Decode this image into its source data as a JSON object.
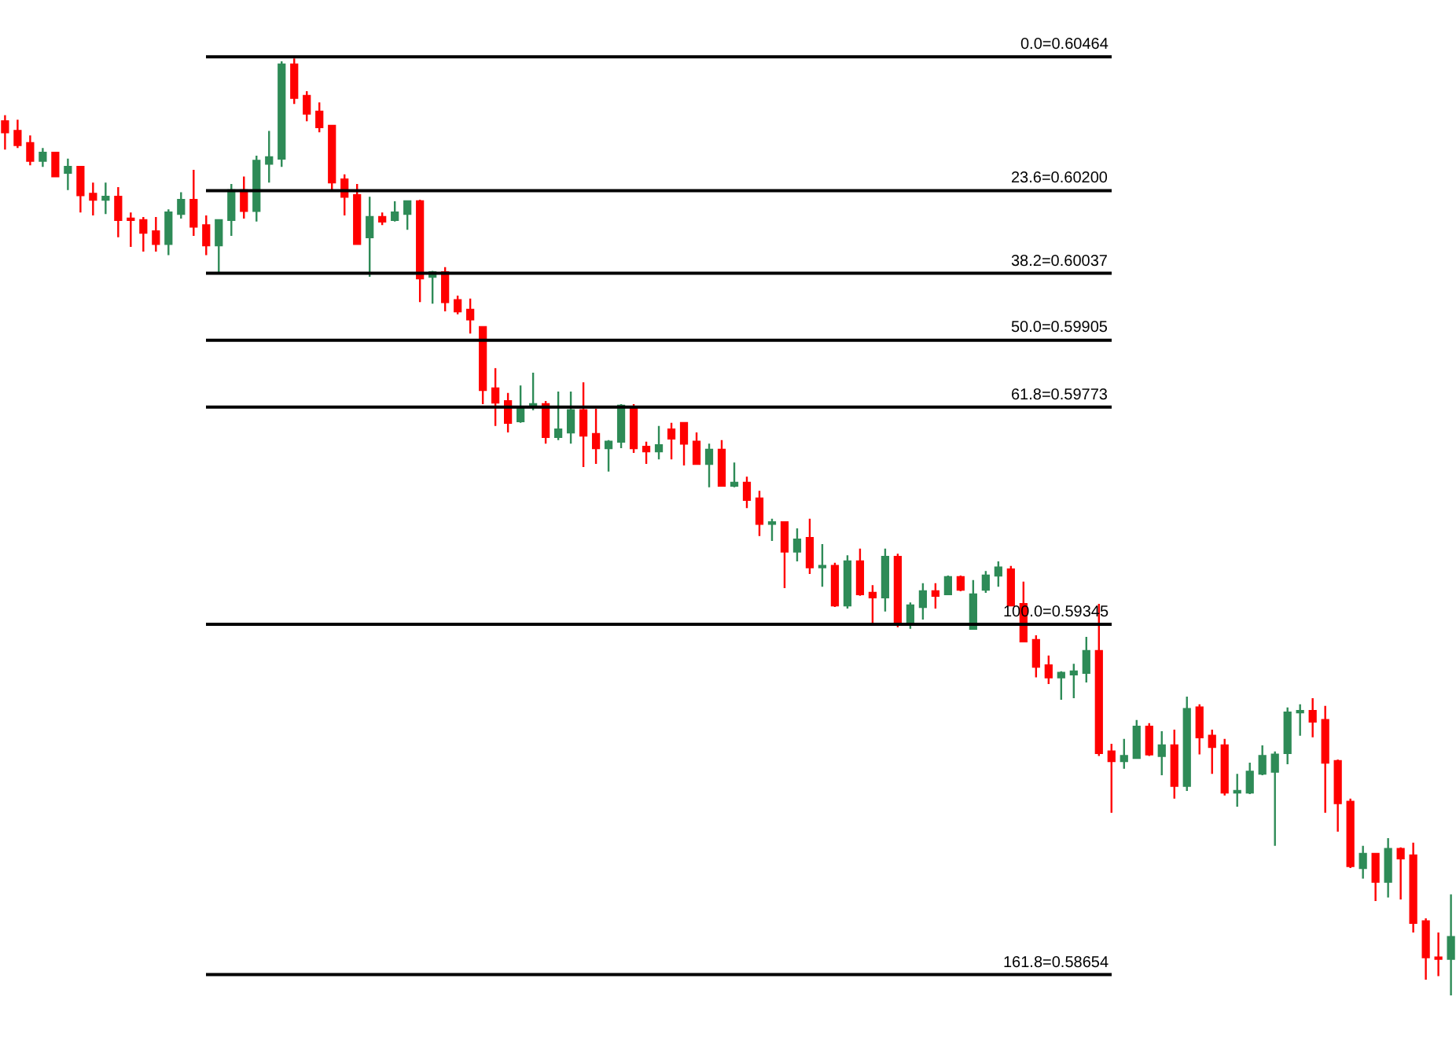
{
  "chart_data": {
    "type": "candlestick",
    "categories": [
      null,
      null,
      null,
      null,
      null,
      null,
      null,
      null,
      null,
      null,
      null,
      null,
      null,
      null,
      null,
      null,
      null,
      null,
      null,
      null,
      null,
      null,
      null,
      null,
      null,
      null,
      null,
      null,
      null,
      null,
      null,
      null,
      null,
      null,
      null,
      null,
      null,
      null,
      null,
      null,
      null,
      null,
      null,
      null,
      null,
      null,
      null,
      null,
      null,
      null,
      null,
      null,
      null,
      null,
      null,
      null,
      null,
      null,
      null,
      null,
      null,
      null,
      null,
      null,
      null,
      null,
      null,
      null,
      null,
      null,
      null,
      null,
      null,
      null,
      null,
      null,
      null,
      null,
      null,
      null,
      null,
      null,
      null,
      null,
      null,
      null,
      null,
      null,
      null,
      null,
      null,
      null,
      null,
      null,
      null,
      null,
      null,
      null,
      null,
      null,
      null,
      null,
      null,
      null,
      null,
      null,
      null,
      null,
      null,
      null,
      null,
      null,
      null,
      null,
      null,
      null
    ],
    "ohlc": [
      [
        0.60337,
        0.60349,
        0.60281,
        0.60315
      ],
      [
        0.60318,
        0.6034,
        0.60284,
        0.6029
      ],
      [
        0.60294,
        0.60309,
        0.6025,
        0.60259
      ],
      [
        0.60259,
        0.60284,
        0.60247,
        0.60275
      ],
      [
        0.60275,
        0.60275,
        0.60228,
        0.60228
      ],
      [
        0.60235,
        0.60263,
        0.60201,
        0.60247
      ],
      [
        0.60247,
        0.60247,
        0.60157,
        0.60191
      ],
      [
        0.60194,
        0.60216,
        0.60151,
        0.60182
      ],
      [
        0.60182,
        0.60216,
        0.60154,
        0.60188
      ],
      [
        0.60188,
        0.60207,
        0.60108,
        0.60142
      ],
      [
        0.60145,
        0.60157,
        0.60089,
        0.60142
      ],
      [
        0.60142,
        0.60148,
        0.6008,
        0.60117
      ],
      [
        0.6012,
        0.60148,
        0.6008,
        0.60095
      ],
      [
        0.60095,
        0.60163,
        0.60073,
        0.60157
      ],
      [
        0.60154,
        0.60197,
        0.60145,
        0.60182
      ],
      [
        0.60182,
        0.60241,
        0.60111,
        0.60129
      ],
      [
        0.60132,
        0.60151,
        0.60073,
        0.60092
      ],
      [
        0.60092,
        0.60142,
        0.60036,
        0.60142
      ],
      [
        0.60142,
        0.60213,
        0.60111,
        0.60201
      ],
      [
        0.60201,
        0.60228,
        0.60145,
        0.6016
      ],
      [
        0.6016,
        0.60269,
        0.60139,
        0.60259
      ],
      [
        0.60253,
        0.60318,
        0.60216,
        0.60266
      ],
      [
        0.60263,
        0.60455,
        0.60247,
        0.60449
      ],
      [
        0.60449,
        0.60461,
        0.60371,
        0.60383
      ],
      [
        0.60387,
        0.60396,
        0.60337,
        0.60352
      ],
      [
        0.60356,
        0.60374,
        0.60315,
        0.60325
      ],
      [
        0.60328,
        0.60328,
        0.60201,
        0.60216
      ],
      [
        0.60222,
        0.60232,
        0.60151,
        0.60188
      ],
      [
        0.60191,
        0.60213,
        0.60095,
        0.60095
      ],
      [
        0.60108,
        0.60188,
        0.6003,
        0.60148
      ],
      [
        0.60148,
        0.60157,
        0.60132,
        0.60139
      ],
      [
        0.60142,
        0.60179,
        0.60139,
        0.60157
      ],
      [
        0.60154,
        0.60179,
        0.60123,
        0.60179
      ],
      [
        0.60179,
        0.60182,
        0.5998,
        0.60027
      ],
      [
        0.6003,
        0.60042,
        0.59977,
        0.60039
      ],
      [
        0.60039,
        0.60049,
        0.59962,
        0.5998
      ],
      [
        0.59984,
        0.59993,
        0.59956,
        0.59962
      ],
      [
        0.59965,
        0.59987,
        0.59918,
        0.59946
      ],
      [
        0.59931,
        0.59931,
        0.59779,
        0.59807
      ],
      [
        0.5981,
        0.5985,
        0.59736,
        0.59782
      ],
      [
        0.59785,
        0.59801,
        0.59723,
        0.59742
      ],
      [
        0.59745,
        0.59816,
        0.59742,
        0.5977
      ],
      [
        0.59773,
        0.59841,
        0.59767,
        0.59779
      ],
      [
        0.59779,
        0.59785,
        0.59701,
        0.59714
      ],
      [
        0.59714,
        0.59804,
        0.59708,
        0.59729
      ],
      [
        0.59723,
        0.59804,
        0.59701,
        0.59767
      ],
      [
        0.59767,
        0.59822,
        0.59655,
        0.59717
      ],
      [
        0.5972,
        0.5977,
        0.59661,
        0.59692
      ],
      [
        0.59692,
        0.59708,
        0.59646,
        0.59705
      ],
      [
        0.59705,
        0.59779,
        0.59692,
        0.59776
      ],
      [
        0.59773,
        0.59779,
        0.59683,
        0.59692
      ],
      [
        0.59695,
        0.59705,
        0.59661,
        0.59686
      ],
      [
        0.59686,
        0.59736,
        0.5967,
        0.59698
      ],
      [
        0.59729,
        0.59742,
        0.5967,
        0.59711
      ],
      [
        0.59742,
        0.59742,
        0.59658,
        0.59701
      ],
      [
        0.59705,
        0.59723,
        0.59661,
        0.59661
      ],
      [
        0.59661,
        0.59701,
        0.59615,
        0.59689
      ],
      [
        0.59689,
        0.59708,
        0.59618,
        0.59618
      ],
      [
        0.59618,
        0.59664,
        0.59615,
        0.59624
      ],
      [
        0.59624,
        0.59636,
        0.59574,
        0.5959
      ],
      [
        0.59593,
        0.59608,
        0.59519,
        0.59543
      ],
      [
        0.59543,
        0.59553,
        0.59509,
        0.59546
      ],
      [
        0.59546,
        0.59546,
        0.59416,
        0.59488
      ],
      [
        0.59488,
        0.59534,
        0.59469,
        0.59512
      ],
      [
        0.59515,
        0.59553,
        0.59444,
        0.59457
      ],
      [
        0.59457,
        0.59503,
        0.59419,
        0.5946
      ],
      [
        0.5946,
        0.59466,
        0.59379,
        0.59382
      ],
      [
        0.59382,
        0.59481,
        0.59376,
        0.59469
      ],
      [
        0.59469,
        0.59494,
        0.59401,
        0.59404
      ],
      [
        0.59407,
        0.59422,
        0.59345,
        0.59398
      ],
      [
        0.59398,
        0.59494,
        0.5937,
        0.59478
      ],
      [
        0.59478,
        0.59484,
        0.59339,
        0.59345
      ],
      [
        0.59345,
        0.59388,
        0.59336,
        0.59382
      ],
      [
        0.59379,
        0.59426,
        0.59354,
        0.5941
      ],
      [
        0.5941,
        0.59426,
        0.59376,
        0.59401
      ],
      [
        0.59404,
        0.59441,
        0.59404,
        0.59438
      ],
      [
        0.59438,
        0.59441,
        0.5941,
        0.59413
      ],
      [
        0.59336,
        0.59432,
        0.59336,
        0.59404
      ],
      [
        0.59413,
        0.5945,
        0.59407,
        0.59441
      ],
      [
        0.59441,
        0.59469,
        0.59419,
        0.59457
      ],
      [
        0.59453,
        0.5946,
        0.59382,
        0.59382
      ],
      [
        0.59385,
        0.59429,
        0.59311,
        0.59311
      ],
      [
        0.59314,
        0.59323,
        0.5924,
        0.59261
      ],
      [
        0.59264,
        0.59283,
        0.59227,
        0.5924
      ],
      [
        0.5924,
        0.59252,
        0.59196,
        0.59249
      ],
      [
        0.59246,
        0.59267,
        0.59199,
        0.59252
      ],
      [
        0.59249,
        0.5932,
        0.5923,
        0.59292
      ],
      [
        0.59292,
        0.59385,
        0.59085,
        0.59091
      ],
      [
        0.59094,
        0.59109,
        0.58973,
        0.59075
      ],
      [
        0.59075,
        0.59119,
        0.5906,
        0.59085
      ],
      [
        0.59081,
        0.59156,
        0.59081,
        0.59143
      ],
      [
        0.59143,
        0.5915,
        0.59085,
        0.59088
      ],
      [
        0.59085,
        0.59134,
        0.59047,
        0.59106
      ],
      [
        0.59106,
        0.59137,
        0.59001,
        0.59026
      ],
      [
        0.59026,
        0.59202,
        0.59016,
        0.59178
      ],
      [
        0.59181,
        0.59187,
        0.59088,
        0.59122
      ],
      [
        0.59125,
        0.59137,
        0.5905,
        0.59103
      ],
      [
        0.59106,
        0.59119,
        0.59007,
        0.59013
      ],
      [
        0.59013,
        0.5905,
        0.58985,
        0.59016
      ],
      [
        0.59013,
        0.59072,
        0.5901,
        0.59054
      ],
      [
        0.5905,
        0.59106,
        0.59047,
        0.59085
      ],
      [
        0.59054,
        0.59094,
        0.58908,
        0.59088
      ],
      [
        0.59091,
        0.59181,
        0.59069,
        0.59171
      ],
      [
        0.59171,
        0.59187,
        0.59125,
        0.59174
      ],
      [
        0.59174,
        0.59199,
        0.59122,
        0.59153
      ],
      [
        0.59156,
        0.59184,
        0.58973,
        0.59072
      ],
      [
        0.59075,
        0.59078,
        0.58936,
        0.58992
      ],
      [
        0.58995,
        0.59001,
        0.58864,
        0.58868
      ],
      [
        0.58864,
        0.58908,
        0.58843,
        0.58892
      ],
      [
        0.58892,
        0.58892,
        0.58799,
        0.58837
      ],
      [
        0.58837,
        0.58923,
        0.58806,
        0.58902
      ],
      [
        0.58902,
        0.58905,
        0.58802,
        0.58883
      ],
      [
        0.58889,
        0.58914,
        0.58737,
        0.58756
      ],
      [
        0.58759,
        0.58765,
        0.58644,
        0.58688
      ],
      [
        0.58688,
        0.58737,
        0.58651,
        0.58685
      ],
      [
        0.58685,
        0.58812,
        0.58613,
        0.58728
      ]
    ],
    "colors": [
      "#ff0000",
      "#ff0000",
      "#ff0000",
      "#2e8b57",
      "#ff0000",
      "#2e8b57",
      "#ff0000",
      "#ff0000",
      "#2e8b57",
      "#ff0000",
      "#ff0000",
      "#ff0000",
      "#ff0000",
      "#2e8b57",
      "#2e8b57",
      "#ff0000",
      "#ff0000",
      "#2e8b57",
      "#2e8b57",
      "#ff0000",
      "#2e8b57",
      "#2e8b57",
      "#2e8b57",
      "#ff0000",
      "#ff0000",
      "#ff0000",
      "#ff0000",
      "#ff0000",
      "#ff0000",
      "#2e8b57",
      "#ff0000",
      "#2e8b57",
      "#2e8b57",
      "#ff0000",
      "#2e8b57",
      "#ff0000",
      "#ff0000",
      "#ff0000",
      "#ff0000",
      "#ff0000",
      "#ff0000",
      "#2e8b57",
      "#2e8b57",
      "#ff0000",
      "#2e8b57",
      "#2e8b57",
      "#ff0000",
      "#ff0000",
      "#2e8b57",
      "#2e8b57",
      "#ff0000",
      "#ff0000",
      "#2e8b57",
      "#ff0000",
      "#ff0000",
      "#ff0000",
      "#2e8b57",
      "#ff0000",
      "#2e8b57",
      "#ff0000",
      "#ff0000",
      "#2e8b57",
      "#ff0000",
      "#2e8b57",
      "#ff0000",
      "#2e8b57",
      "#ff0000",
      "#2e8b57",
      "#ff0000",
      "#ff0000",
      "#2e8b57",
      "#ff0000",
      "#2e8b57",
      "#2e8b57",
      "#ff0000",
      "#2e8b57",
      "#ff0000",
      "#2e8b57",
      "#2e8b57",
      "#2e8b57",
      "#ff0000",
      "#ff0000",
      "#ff0000",
      "#ff0000",
      "#2e8b57",
      "#2e8b57",
      "#2e8b57",
      "#ff0000",
      "#ff0000",
      "#2e8b57",
      "#2e8b57",
      "#ff0000",
      "#2e8b57",
      "#ff0000",
      "#2e8b57",
      "#ff0000",
      "#ff0000",
      "#ff0000",
      "#2e8b57",
      "#2e8b57",
      "#2e8b57",
      "#2e8b57",
      "#2e8b57",
      "#2e8b57",
      "#ff0000",
      "#ff0000",
      "#ff0000",
      "#ff0000",
      "#2e8b57",
      "#ff0000",
      "#2e8b57",
      "#ff0000",
      "#ff0000",
      "#ff0000",
      "#ff0000",
      "#2e8b57"
    ],
    "ylim": [
      0.58523,
      0.60576
    ],
    "ref_lines": [
      {
        "axis": "y",
        "value": 0.60464,
        "label": "0.0=0.60464",
        "color": "#000000"
      },
      {
        "axis": "y",
        "value": 0.602,
        "label": "23.6=0.60200",
        "color": "#000000"
      },
      {
        "axis": "y",
        "value": 0.60037,
        "label": "38.2=0.60037",
        "color": "#000000"
      },
      {
        "axis": "y",
        "value": 0.59905,
        "label": "50.0=0.59905",
        "color": "#000000"
      },
      {
        "axis": "y",
        "value": 0.59773,
        "label": "61.8=0.59773",
        "color": "#000000"
      },
      {
        "axis": "y",
        "value": 0.59345,
        "label": "100.0=0.59345",
        "color": "#000000"
      },
      {
        "axis": "y",
        "value": 0.58654,
        "label": "161.8=0.58654",
        "color": "#000000"
      }
    ]
  }
}
